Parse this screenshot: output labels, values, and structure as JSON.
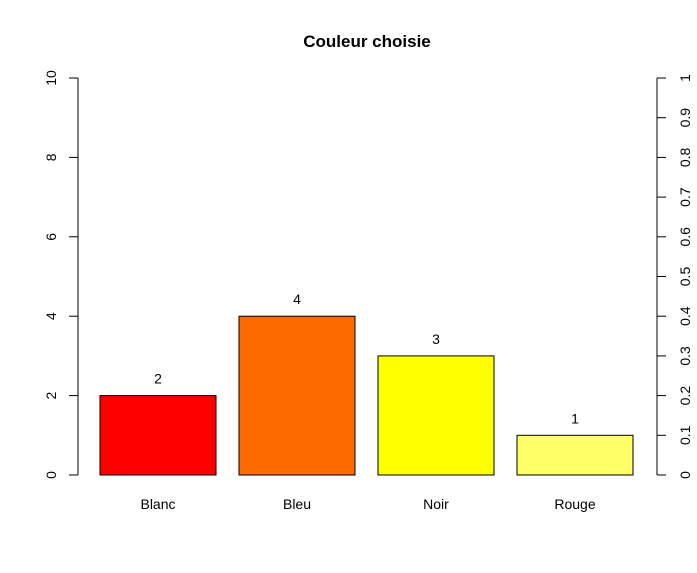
{
  "chart_data": {
    "type": "bar",
    "title": "Couleur choisie",
    "xlabel": "",
    "ylabel": "",
    "categories": [
      "Blanc",
      "Bleu",
      "Noir",
      "Rouge"
    ],
    "values": [
      2,
      4,
      3,
      1
    ],
    "value_labels": [
      "2",
      "4",
      "3",
      "1"
    ],
    "bar_colors": [
      "#ff0000",
      "#ff6a00",
      "#ffff00",
      "#ffff66"
    ],
    "ylim": [
      0,
      10
    ],
    "yticks": [
      0,
      2,
      4,
      6,
      8,
      10
    ],
    "ytick_labels": [
      "0",
      "2",
      "4",
      "6",
      "8",
      "10"
    ],
    "y2lim": [
      0,
      1
    ],
    "y2ticks": [
      0,
      0.1,
      0.2,
      0.3,
      0.4,
      0.5,
      0.6,
      0.7,
      0.8,
      0.9,
      1
    ],
    "y2tick_labels": [
      "0",
      "0.1",
      "0.2",
      "0.3",
      "0.4",
      "0.5",
      "0.6",
      "0.7",
      "0.8",
      "0.9",
      "1"
    ],
    "grid": false,
    "legend": "none"
  }
}
